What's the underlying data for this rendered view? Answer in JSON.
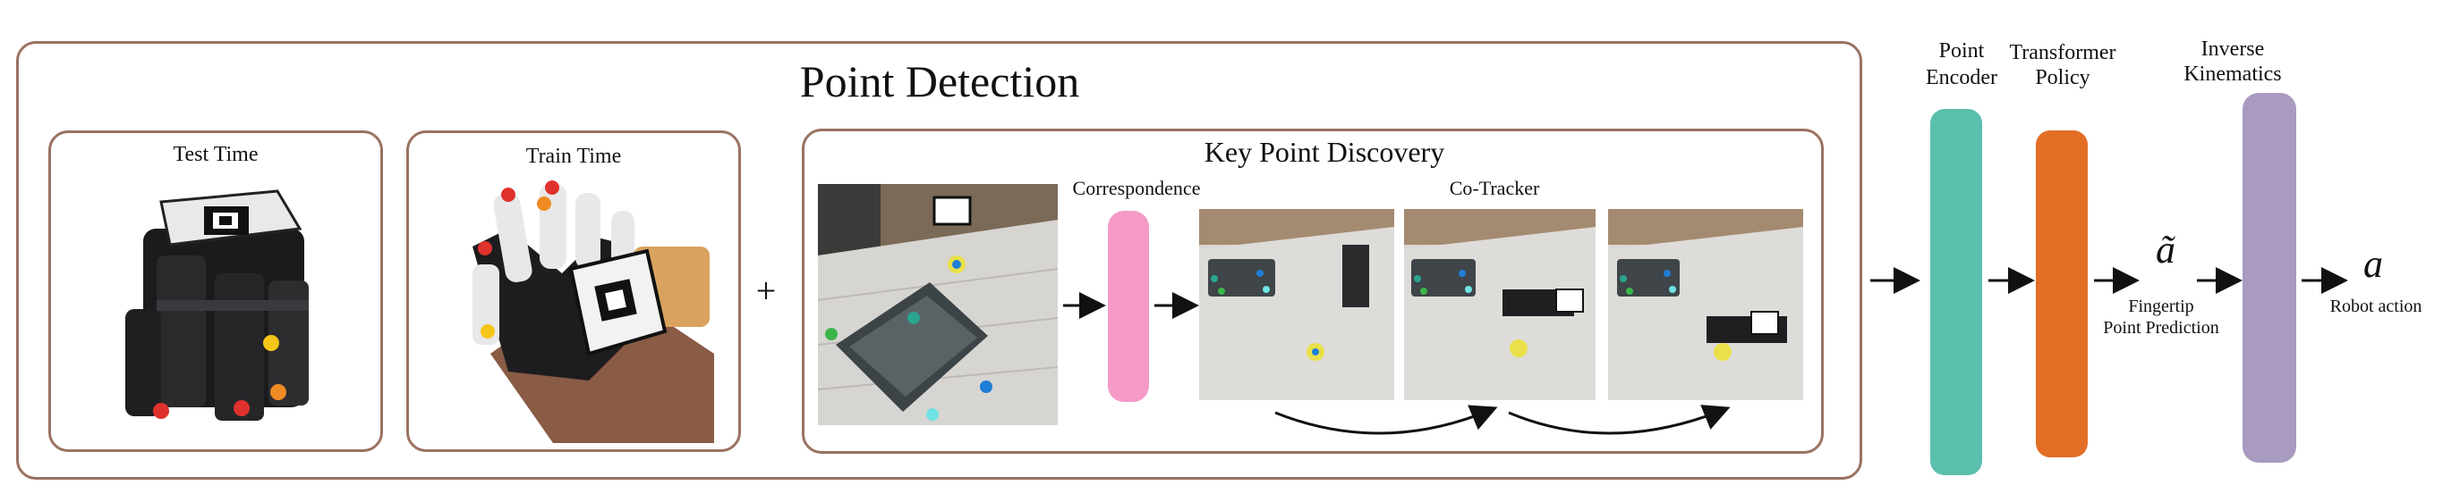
{
  "point_detection": {
    "title": "Point Detection",
    "test_time_label": "Test Time",
    "train_time_label": "Train Time",
    "plus_sign": "+",
    "key_point_discovery": {
      "title": "Key Point Discovery",
      "correspondence_label": "Correspondence",
      "co_tracker_label": "Co-Tracker"
    }
  },
  "pipeline": {
    "point_encoder_label": [
      "Point",
      "Encoder"
    ],
    "transformer_policy_label": [
      "Transformer",
      "Policy"
    ],
    "fingertip_symbol": "ã",
    "fingertip_label": [
      "Fingertip",
      "Point Prediction"
    ],
    "inverse_kinematics_label": [
      "Inverse",
      "Kinematics"
    ],
    "robot_action_symbol": "a",
    "robot_action_label": "Robot action"
  },
  "colors": {
    "frame_border": "#9b7261",
    "correspondence": "#f59ac8",
    "point_encoder": "#5bbfae",
    "transformer_policy": "#e36e25",
    "inverse_kinematics": "#a99ac0",
    "keypoint_red": "#e0322d",
    "keypoint_orange": "#f08a24",
    "keypoint_yellow": "#f5c518",
    "keypoint_green": "#3cb54a",
    "keypoint_teal": "#2aa58f",
    "keypoint_blue": "#1f7fd6",
    "keypoint_cyan": "#6fe3e3"
  },
  "icons": [
    "glove-with-marker-photo",
    "hand-in-glove-photo",
    "basket-scene-photo",
    "robot-tracking-frame-photo"
  ]
}
